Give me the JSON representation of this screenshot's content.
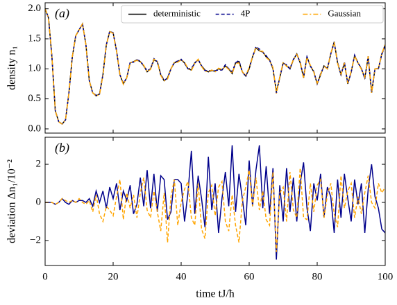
{
  "chart_data": [
    {
      "type": "line",
      "panel_label": "(a)",
      "ylabel": "density n₁",
      "x": [
        0,
        1,
        2,
        3,
        4,
        5,
        6,
        7,
        8,
        9,
        10,
        11,
        12,
        13,
        14,
        15,
        16,
        17,
        18,
        19,
        20,
        21,
        22,
        23,
        24,
        25,
        26,
        27,
        28,
        29,
        30,
        31,
        32,
        33,
        34,
        35,
        36,
        37,
        38,
        39,
        40,
        41,
        42,
        43,
        44,
        45,
        46,
        47,
        48,
        49,
        50,
        51,
        52,
        53,
        54,
        55,
        56,
        57,
        58,
        59,
        60,
        61,
        62,
        63,
        64,
        65,
        66,
        67,
        68,
        69,
        70,
        71,
        72,
        73,
        74,
        75,
        76,
        77,
        78,
        79,
        80,
        81,
        82,
        83,
        84,
        85,
        86,
        87,
        88,
        89,
        90,
        91,
        92,
        93,
        94,
        95,
        96,
        97,
        98,
        99,
        100
      ],
      "series": [
        {
          "name": "deterministic",
          "color": "#000000",
          "linestyle": "solid",
          "values": [
            2.0,
            1.85,
            1.2,
            0.3,
            0.12,
            0.08,
            0.15,
            0.6,
            1.2,
            1.55,
            1.65,
            1.75,
            1.4,
            0.8,
            0.6,
            0.55,
            0.58,
            0.9,
            1.4,
            1.62,
            1.6,
            1.3,
            0.9,
            0.75,
            0.85,
            1.1,
            1.12,
            1.15,
            1.12,
            1.05,
            0.95,
            1.0,
            1.15,
            1.12,
            0.9,
            0.8,
            0.85,
            1.0,
            1.1,
            1.12,
            1.15,
            1.1,
            1.0,
            0.98,
            1.1,
            1.15,
            1.05,
            0.98,
            0.95,
            0.97,
            0.96,
            1.0,
            0.98,
            1.05,
            1.0,
            0.92,
            1.1,
            1.12,
            0.95,
            0.88,
            1.0,
            1.2,
            1.35,
            1.3,
            1.28,
            1.2,
            1.15,
            1.0,
            0.62,
            0.85,
            1.1,
            1.05,
            1.0,
            1.15,
            1.25,
            1.1,
            0.85,
            1.2,
            1.05,
            0.95,
            0.75,
            0.9,
            1.05,
            1.0,
            1.25,
            1.45,
            1.1,
            0.9,
            1.1,
            0.75,
            0.95,
            1.22,
            1.1,
            1.0,
            0.85,
            1.2,
            0.6,
            1.0,
            1.0,
            1.25,
            1.4
          ]
        },
        {
          "name": "4P",
          "color": "#00008b",
          "linestyle": "dashed",
          "values": [
            2.0,
            1.85,
            1.2,
            0.3,
            0.12,
            0.08,
            0.15,
            0.6,
            1.2,
            1.55,
            1.65,
            1.75,
            1.4,
            0.8,
            0.6,
            0.56,
            0.58,
            0.91,
            1.4,
            1.63,
            1.6,
            1.31,
            0.9,
            0.76,
            0.85,
            1.11,
            1.11,
            1.15,
            1.13,
            1.05,
            0.97,
            1.0,
            1.17,
            1.12,
            0.91,
            0.81,
            0.84,
            1.0,
            1.11,
            1.13,
            1.16,
            1.09,
            1.0,
            1.01,
            1.09,
            1.16,
            1.05,
            0.97,
            0.97,
            0.97,
            0.97,
            0.98,
            0.98,
            1.07,
            1.0,
            0.95,
            1.1,
            1.14,
            0.95,
            0.87,
            1.02,
            1.2,
            1.37,
            1.33,
            1.28,
            1.22,
            1.14,
            1.02,
            0.59,
            0.86,
            1.09,
            1.07,
            1.0,
            1.16,
            1.24,
            1.11,
            0.87,
            1.2,
            1.04,
            0.96,
            0.75,
            0.92,
            1.04,
            1.01,
            1.25,
            1.43,
            1.11,
            0.89,
            1.12,
            0.75,
            0.94,
            1.23,
            1.1,
            1.01,
            0.83,
            1.21,
            0.62,
            1.0,
            1.0,
            1.24,
            1.38
          ]
        },
        {
          "name": "Gaussian",
          "color": "#ffa500",
          "linestyle": "dashdot",
          "values": [
            2.0,
            1.85,
            1.2,
            0.3,
            0.12,
            0.08,
            0.15,
            0.6,
            1.2,
            1.55,
            1.65,
            1.75,
            1.4,
            0.8,
            0.6,
            0.55,
            0.57,
            0.89,
            1.4,
            1.62,
            1.59,
            1.3,
            0.91,
            0.74,
            0.85,
            1.1,
            1.12,
            1.14,
            1.12,
            1.06,
            0.95,
            0.99,
            1.16,
            1.12,
            0.89,
            0.8,
            0.83,
            1.0,
            1.11,
            1.11,
            1.15,
            1.11,
            1.01,
            0.97,
            1.09,
            1.16,
            1.04,
            0.96,
            0.95,
            0.98,
            0.95,
            1.01,
            0.99,
            1.04,
            0.99,
            0.92,
            1.09,
            1.1,
            0.95,
            0.89,
            1.02,
            1.2,
            1.36,
            1.3,
            1.29,
            1.19,
            1.14,
            1.02,
            0.59,
            0.86,
            1.11,
            1.04,
            1.02,
            1.15,
            1.24,
            1.12,
            0.84,
            1.19,
            1.06,
            0.95,
            0.76,
            0.91,
            1.04,
            1.0,
            1.26,
            1.44,
            1.09,
            0.91,
            1.1,
            0.76,
            0.96,
            1.21,
            1.1,
            0.99,
            0.86,
            1.21,
            0.6,
            1.0,
            1.01,
            1.25,
            1.41
          ]
        }
      ],
      "legend": "upper right",
      "xlim": [
        0,
        100
      ],
      "xticks": [
        0,
        20,
        40,
        60,
        80,
        100
      ],
      "ylim": [
        -0.07,
        2.1
      ],
      "yticks": [
        {
          "value": 0,
          "label": "0.0"
        },
        0.5,
        {
          "value": 1,
          "label": "1.0"
        },
        1.5,
        {
          "value": 2,
          "label": "2.0"
        }
      ]
    },
    {
      "type": "line",
      "panel_label": "(b)",
      "ylabel": "deviation Δn₁/10⁻²",
      "xlabel": "time tJ/ħ",
      "x": [
        0,
        1,
        2,
        3,
        4,
        5,
        6,
        7,
        8,
        9,
        10,
        11,
        12,
        13,
        14,
        15,
        16,
        17,
        18,
        19,
        20,
        21,
        22,
        23,
        24,
        25,
        26,
        27,
        28,
        29,
        30,
        31,
        32,
        33,
        34,
        35,
        36,
        37,
        38,
        39,
        40,
        41,
        42,
        43,
        44,
        45,
        46,
        47,
        48,
        49,
        50,
        51,
        52,
        53,
        54,
        55,
        56,
        57,
        58,
        59,
        60,
        61,
        62,
        63,
        64,
        65,
        66,
        67,
        68,
        69,
        70,
        71,
        72,
        73,
        74,
        75,
        76,
        77,
        78,
        79,
        80,
        81,
        82,
        83,
        84,
        85,
        86,
        87,
        88,
        89,
        90,
        91,
        92,
        93,
        94,
        95,
        96,
        97,
        98,
        99,
        100
      ],
      "series": [
        {
          "color": "#00008b",
          "linestyle": "solid",
          "values": [
            0,
            0,
            0,
            -0.1,
            0,
            0.2,
            0,
            -0.1,
            0.1,
            0,
            0.1,
            0.1,
            0,
            0.2,
            -0.2,
            0.6,
            0,
            0.6,
            -0.3,
            0.8,
            0.2,
            1.0,
            -0.4,
            0.6,
            0.1,
            0.9,
            -0.6,
            -0.1,
            1.3,
            -0.2,
            1.7,
            -0.3,
            1.5,
            -0.5,
            1.4,
            1.2,
            -0.9,
            -0.5,
            1.2,
            1.2,
            1.0,
            -1.0,
            0.5,
            2.7,
            -0.6,
            1.4,
            0.2,
            -1.3,
            2.4,
            -0.4,
            1.0,
            -1.6,
            0.2,
            1.6,
            -0.2,
            3.0,
            -0.5,
            1.5,
            0.2,
            -1.2,
            2.2,
            -0.2,
            1.7,
            3.0,
            -0.3,
            1.9,
            -0.6,
            1.8,
            -3.0,
            0.9,
            -1.0,
            1.8,
            -0.5,
            1.3,
            -1.0,
            1.0,
            2.1,
            -0.3,
            -1.5,
            1.0,
            0.1,
            1.5,
            -0.8,
            0.8,
            0.3,
            -1.6,
            1.2,
            -0.8,
            1.5,
            0.2,
            -1.0,
            1.2,
            -0.1,
            1.0,
            -1.6,
            0.7,
            2.0,
            0.3,
            -0.3,
            -1.4,
            -1.6
          ]
        },
        {
          "color": "#ffa500",
          "linestyle": "dashed",
          "values": [
            0,
            0,
            0,
            -0.1,
            0,
            0.2,
            0.1,
            0,
            0.1,
            0,
            0.2,
            0,
            -0.1,
            0.1,
            -0.5,
            0.4,
            -0.6,
            -1.0,
            -0.2,
            -0.4,
            -0.7,
            0.3,
            1.2,
            -0.9,
            0.5,
            -0.3,
            0.4,
            -0.8,
            0.5,
            1.3,
            -0.4,
            -0.8,
            0.6,
            -0.5,
            -1.5,
            0.5,
            -2.1,
            0.3,
            1.2,
            -1.2,
            0,
            0.7,
            1.1,
            -0.8,
            -1.2,
            1.0,
            -1.4,
            -1.9,
            0.5,
            0.9,
            -0.7,
            0.8,
            1.1,
            -1.0,
            -1.5,
            0.4,
            -1.2,
            -2.1,
            0.1,
            0.8,
            1.7,
            -0.2,
            1.3,
            -0.4,
            0.6,
            -0.9,
            -1.2,
            1.6,
            -2.6,
            0.5,
            0.8,
            -1.0,
            1.6,
            -0.4,
            -0.8,
            1.8,
            -0.8,
            -0.9,
            1.0,
            -0.5,
            0.9,
            1.2,
            -0.8,
            0.4,
            1.0,
            -0.6,
            -1.3,
            1.4,
            -0.3,
            0.6,
            1.0,
            -0.8,
            0.3,
            -0.6,
            0.5,
            1.4,
            0.0,
            -0.3,
            1.0,
            0.5,
            0.8
          ]
        }
      ],
      "xlim": [
        0,
        100
      ],
      "xticks": [
        0,
        20,
        40,
        60,
        80,
        100
      ],
      "ylim": [
        -3.31,
        3.42
      ],
      "yticks": [
        {
          "value": -2,
          "label": "−2"
        },
        0,
        2
      ]
    }
  ]
}
